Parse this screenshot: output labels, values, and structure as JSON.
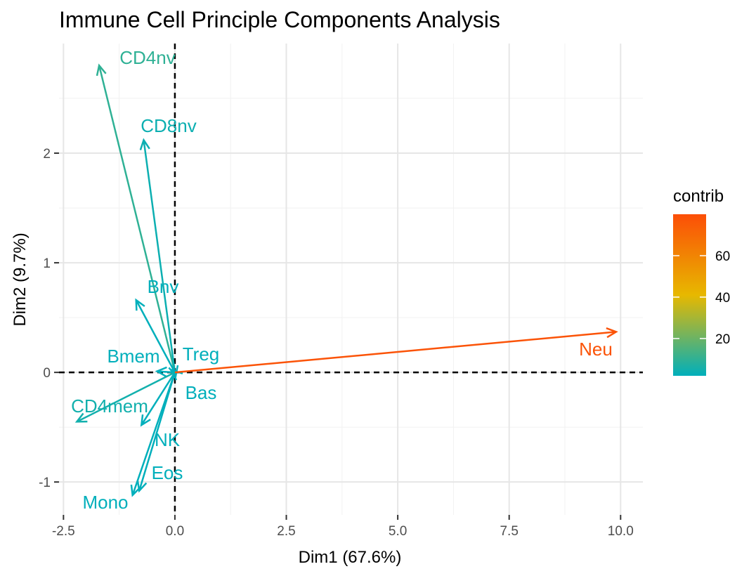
{
  "chart_data": {
    "type": "pca-variables-biplot",
    "title": "Immune Cell Principle Components Analysis",
    "xlabel": "Dim1 (67.6%)",
    "ylabel": "Dim2 (9.7%)",
    "xlim": [
      -2.6,
      10.5
    ],
    "ylim": [
      -1.3,
      3.0
    ],
    "x_ticks": [
      -2.5,
      0.0,
      2.5,
      5.0,
      7.5,
      10.0
    ],
    "x_tick_labels": [
      "-2.5",
      "0.0",
      "2.5",
      "5.0",
      "7.5",
      "10.0"
    ],
    "y_ticks": [
      -1,
      0,
      1,
      2
    ],
    "y_tick_labels": [
      "-1",
      "0",
      "1",
      "2"
    ],
    "grid": true,
    "reference_lines": {
      "x": 0,
      "y": 0,
      "style": "dashed"
    },
    "color_legend": {
      "title": "contrib",
      "placement": "right",
      "min": 2,
      "max": 80,
      "ticks": [
        20,
        40,
        60
      ],
      "tick_labels": [
        "20",
        "40",
        "60"
      ],
      "colors": [
        "#00AFBB",
        "#E7B800",
        "#FC4E07"
      ]
    },
    "variables": [
      {
        "name": "CD4nv",
        "x": -1.7,
        "y": 2.8,
        "contrib": 10
      },
      {
        "name": "CD8nv",
        "x": -0.7,
        "y": 2.12,
        "contrib": 4
      },
      {
        "name": "Bnv",
        "x": -0.87,
        "y": 0.66,
        "contrib": 2
      },
      {
        "name": "Bmem",
        "x": -0.4,
        "y": 0.01,
        "contrib": 1
      },
      {
        "name": "Treg",
        "x": -0.05,
        "y": 0.02,
        "contrib": 1
      },
      {
        "name": "Bas",
        "x": 0.02,
        "y": -0.03,
        "contrib": 1
      },
      {
        "name": "CD4mem",
        "x": -2.2,
        "y": -0.45,
        "contrib": 5
      },
      {
        "name": "NK",
        "x": -0.75,
        "y": -0.48,
        "contrib": 2
      },
      {
        "name": "Eos",
        "x": -0.8,
        "y": -1.08,
        "contrib": 2
      },
      {
        "name": "Mono",
        "x": -0.95,
        "y": -1.12,
        "contrib": 2
      },
      {
        "name": "Neu",
        "x": 9.9,
        "y": 0.37,
        "contrib": 78
      }
    ]
  }
}
